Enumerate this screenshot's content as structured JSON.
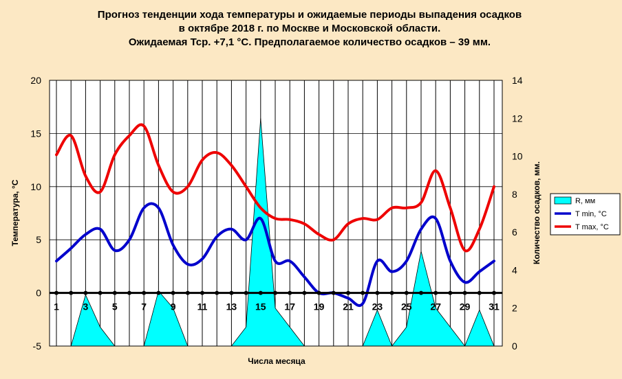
{
  "chart_data": {
    "type": "line",
    "title_lines": [
      "Прогноз тенденции хода температуры и ожидаемые периоды выпадения осадков",
      "в октябре 2018 г. по Москве и Московской области.",
      "Ожидаемая Тср. +7,1 °С. Предполагаемое количество осадков – 39 мм."
    ],
    "xlabel": "Числа месяца",
    "ylabel_left": "Температура, °С",
    "ylabel_right": "Количество осадков, мм.",
    "x": [
      1,
      2,
      3,
      4,
      5,
      6,
      7,
      8,
      9,
      10,
      11,
      12,
      13,
      14,
      15,
      16,
      17,
      18,
      19,
      20,
      21,
      22,
      23,
      24,
      25,
      26,
      27,
      28,
      29,
      30,
      31
    ],
    "x_tick_labels": [
      "1",
      "3",
      "5",
      "7",
      "9",
      "11",
      "13",
      "15",
      "17",
      "19",
      "21",
      "23",
      "25",
      "27",
      "29",
      "31"
    ],
    "ylim_left": [
      -5,
      20
    ],
    "yticks_left": [
      "-5",
      "0",
      "5",
      "10",
      "15",
      "20"
    ],
    "ylim_right": [
      0,
      14
    ],
    "yticks_right": [
      "0",
      "2",
      "4",
      "6",
      "8",
      "10",
      "12",
      "14"
    ],
    "grid": "vertical",
    "legend_position": "right",
    "series": [
      {
        "name": "R, мм",
        "type": "area",
        "axis": "right",
        "color": "#00ffff",
        "values": [
          0,
          0,
          2.7,
          1,
          0,
          0,
          0,
          2.9,
          2,
          0,
          0,
          0,
          0,
          1,
          12,
          2,
          1,
          0,
          0,
          0,
          0,
          0,
          1.9,
          0,
          1,
          5,
          2,
          1,
          0,
          1.9,
          0
        ]
      },
      {
        "name": "T min, °C",
        "type": "line",
        "axis": "left",
        "color": "#0000cc",
        "values": [
          3,
          4.2,
          5.5,
          6,
          4,
          5,
          8,
          8,
          4.5,
          2.7,
          3.2,
          5.3,
          6,
          5,
          7,
          3,
          3,
          1.5,
          0,
          0,
          -0.5,
          -1,
          3,
          2,
          3,
          6,
          7,
          3,
          1,
          2,
          3
        ]
      },
      {
        "name": "T max, °C",
        "type": "line",
        "axis": "left",
        "color": "#ee0000",
        "values": [
          13,
          14.8,
          11,
          9.5,
          13,
          14.8,
          15.7,
          12,
          9.5,
          10,
          12.5,
          13.2,
          12,
          10,
          8,
          7,
          6.9,
          6.5,
          5.5,
          5,
          6.5,
          7,
          6.9,
          8,
          8,
          8.5,
          11.5,
          8,
          4,
          6,
          10
        ]
      }
    ]
  }
}
